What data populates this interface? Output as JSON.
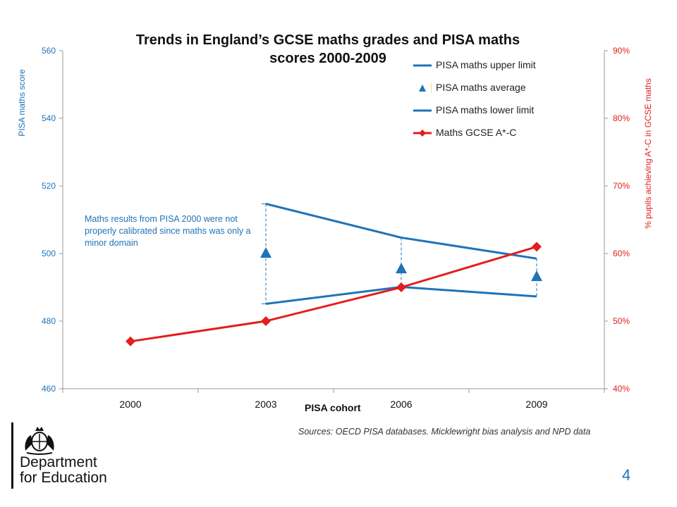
{
  "chart_data": {
    "type": "line",
    "title": "Trends in England’s GCSE maths grades and PISA maths scores 2000-2009",
    "xlabel": "PISA cohort",
    "ylabel_left": "PISA maths score",
    "ylabel_right": "% pupils achieving A*-C in GCSE maths",
    "categories": [
      "2000",
      "2003",
      "2006",
      "2009"
    ],
    "y_left": {
      "min": 460,
      "max": 560,
      "ticks": [
        "460",
        "480",
        "500",
        "520",
        "540",
        "560"
      ]
    },
    "y_right": {
      "min": 40,
      "max": 90,
      "ticks": [
        "40%",
        "50%",
        "60%",
        "70%",
        "80%",
        "90%"
      ]
    },
    "grid": false,
    "legend_position": "top-right",
    "series": [
      {
        "name": "PISA maths upper limit",
        "axis": "left",
        "color": "#1f73b7",
        "marker": "none",
        "values": [
          null,
          514.7,
          504.7,
          498.5
        ]
      },
      {
        "name": "PISA maths average",
        "axis": "left",
        "color": "#1f73b7",
        "marker": "triangle",
        "line": false,
        "values": [
          null,
          500,
          495.4,
          493.1
        ]
      },
      {
        "name": "PISA maths lower limit",
        "axis": "left",
        "color": "#1f73b7",
        "marker": "none",
        "values": [
          null,
          485.1,
          490.1,
          487.3
        ]
      },
      {
        "name": "Maths GCSE A*-C",
        "axis": "right",
        "color": "#e41d1d",
        "marker": "diamond",
        "values": [
          47,
          50,
          55,
          61
        ]
      }
    ],
    "annotation": "Maths results  from PISA 2000 were not properly calibrated since maths was only a minor domain"
  },
  "title_line1": "Trends in England’s GCSE maths grades and PISA maths",
  "title_line2": "scores 2000-2009",
  "note": "Maths results  from PISA 2000 were not properly calibrated since maths was only a minor domain",
  "sources": "Sources: OECD PISA databases. Micklewright bias analysis and NPD data",
  "logo": {
    "line1": "Department",
    "line2": "for Education",
    "icon": "royal-crest-icon"
  },
  "page_number": "4",
  "colors": {
    "blue": "#1f73b7",
    "red": "#e41d1d",
    "axis_text_blue": "#1f73b7",
    "axis_text_red": "#e02020"
  }
}
